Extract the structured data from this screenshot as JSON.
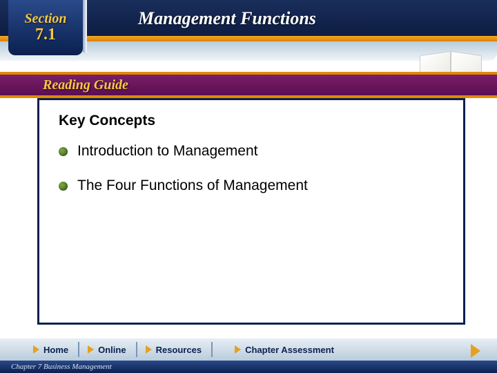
{
  "header": {
    "section_label": "Section",
    "section_number": "7.1",
    "chapter_title": "Management Functions"
  },
  "reading_guide": {
    "label": "Reading Guide"
  },
  "content": {
    "heading": "Key Concepts",
    "bullets": [
      "Introduction to Management",
      "The Four Functions of Management"
    ]
  },
  "nav": {
    "home": "Home",
    "online": "Online",
    "resources": "Resources",
    "assessment": "Chapter Assessment"
  },
  "footer": {
    "caption": "Chapter 7 Business Management"
  },
  "colors": {
    "navy": "#0a2050",
    "gold": "#f5c842",
    "orange": "#e5a020",
    "purple": "#5c0d50",
    "bullet_green": "#5a8828"
  }
}
